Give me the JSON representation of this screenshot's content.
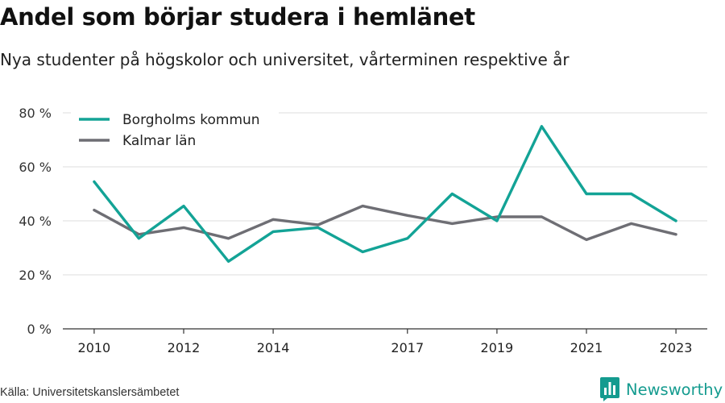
{
  "header": {
    "title": "Andel som börjar studera i hemlänet",
    "subtitle": "Nya studenter på högskolor och universitet, vårterminen respektive år"
  },
  "footer": {
    "source": "Källa: Universitetskanslersämbetet",
    "brand": "Newsworthy"
  },
  "colors": {
    "borgholm": "#13a396",
    "kalmar": "#6e6e74",
    "grid": "#dcdcdc",
    "axis": "#333333",
    "brand": "#149b8f"
  },
  "chart_data": {
    "type": "line",
    "title": "Andel som börjar studera i hemlänet",
    "subtitle": "Nya studenter på högskolor och universitet, vårterminen respektive år",
    "x": [
      2010,
      2011,
      2012,
      2013,
      2014,
      2015,
      2016,
      2017,
      2018,
      2019,
      2020,
      2021,
      2022,
      2023
    ],
    "x_ticks": [
      2010,
      2012,
      2014,
      2017,
      2019,
      2021,
      2023
    ],
    "y_ticks": [
      0,
      20,
      40,
      60,
      80
    ],
    "y_tick_labels": [
      "0 %",
      "20 %",
      "40 %",
      "60 %",
      "80 %"
    ],
    "ylim": [
      0,
      80
    ],
    "xlim": [
      2009.3,
      2023.7
    ],
    "grid": true,
    "legend_position": "top-left",
    "series": [
      {
        "name": "Borgholms kommun",
        "color_key": "borgholm",
        "values": [
          54.5,
          33.5,
          45.5,
          25,
          36,
          37.5,
          28.5,
          33.5,
          50,
          40,
          75,
          50,
          50,
          40
        ]
      },
      {
        "name": "Kalmar län",
        "color_key": "kalmar",
        "values": [
          44,
          35,
          37.5,
          33.5,
          40.5,
          38.5,
          45.5,
          42,
          39,
          41.5,
          41.5,
          33,
          39,
          35
        ]
      }
    ]
  }
}
